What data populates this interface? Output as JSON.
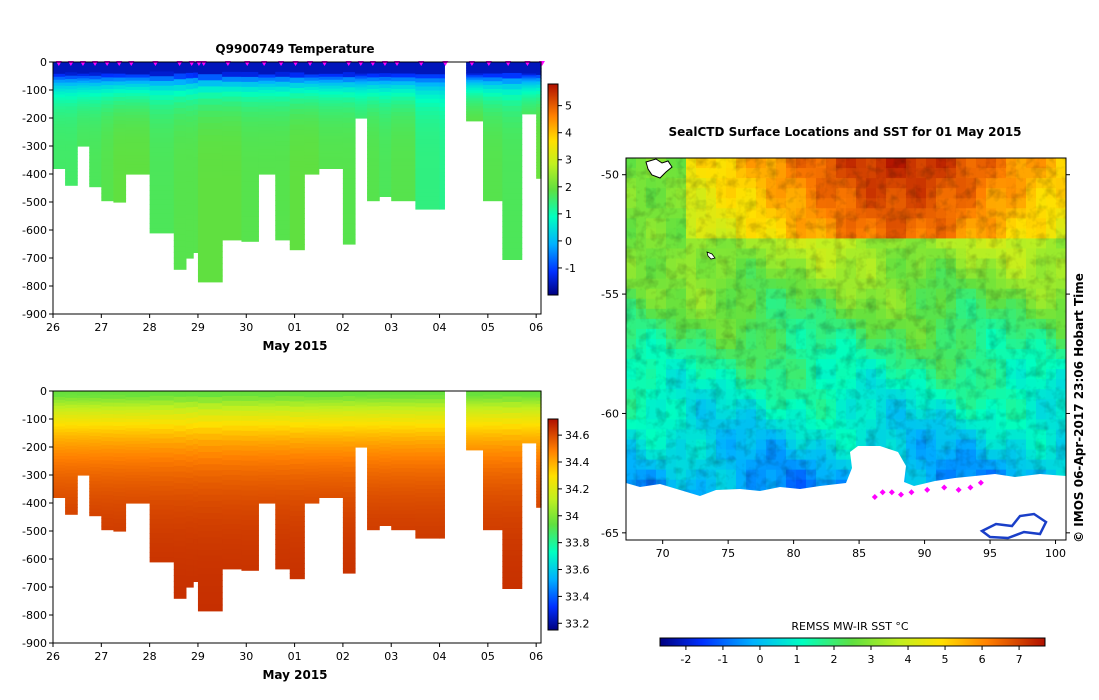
{
  "chart_data": [
    {
      "type": "heatmap",
      "title": "Q9900749  Temperature",
      "variable": "temperature",
      "xlabel": "May 2015",
      "x_ticks": [
        "26",
        "27",
        "28",
        "29",
        "30",
        "01",
        "02",
        "03",
        "04",
        "05",
        "06"
      ],
      "x_range_days": [
        0,
        10.1
      ],
      "y_ticks": [
        "0",
        "-100",
        "-200",
        "-300",
        "-400",
        "-500",
        "-600",
        "-700",
        "-800",
        "-900"
      ],
      "ylim": [
        -900,
        0
      ],
      "colorbar": {
        "range": [
          -2.0,
          5.8
        ],
        "ticks": [
          "-1",
          "0",
          "1",
          "2",
          "3",
          "4",
          "5"
        ],
        "tick_values": [
          -1,
          0,
          1,
          2,
          3,
          4,
          5
        ]
      },
      "surface_value": -1.6,
      "profiles_day": [
        0.0,
        0.25,
        0.5,
        0.75,
        1.0,
        1.25,
        1.5,
        2.0,
        2.5,
        2.75,
        2.9,
        3.0,
        3.5,
        3.9,
        4.25,
        4.6,
        4.9,
        5.2,
        5.5,
        6.0,
        6.25,
        6.5,
        6.75,
        7.0,
        7.5,
        8.0,
        8.55,
        8.9,
        9.3,
        9.7,
        10.0
      ],
      "profiles_max_depth_m": [
        380,
        440,
        300,
        445,
        495,
        500,
        400,
        610,
        740,
        700,
        680,
        785,
        635,
        640,
        400,
        635,
        670,
        400,
        380,
        650,
        200,
        495,
        480,
        495,
        525,
        525,
        210,
        495,
        705,
        185,
        415
      ],
      "profiles_deep_value": [
        1.6,
        1.6,
        1.7,
        1.7,
        1.8,
        1.9,
        1.9,
        1.7,
        1.8,
        1.8,
        1.8,
        1.9,
        1.9,
        1.8,
        1.8,
        1.8,
        1.9,
        1.9,
        1.8,
        1.8,
        1.7,
        1.8,
        1.7,
        1.8,
        1.4,
        1.3,
        2.0,
        1.8,
        1.7,
        1.9,
        2.0
      ],
      "gap_days": [
        8.1,
        8.55
      ]
    },
    {
      "type": "heatmap",
      "title": "",
      "variable": "salinity",
      "xlabel": "May 2015",
      "x_ticks": [
        "26",
        "27",
        "28",
        "29",
        "30",
        "01",
        "02",
        "03",
        "04",
        "05",
        "06"
      ],
      "x_range_days": [
        0,
        10.1
      ],
      "y_ticks": [
        "0",
        "-100",
        "-200",
        "-300",
        "-400",
        "-500",
        "-600",
        "-700",
        "-800",
        "-900"
      ],
      "ylim": [
        -900,
        0
      ],
      "colorbar": {
        "range": [
          33.15,
          34.72
        ],
        "ticks": [
          "33.2",
          "33.4",
          "33.6",
          "33.8",
          "34",
          "34.2",
          "34.4",
          "34.6"
        ],
        "tick_values": [
          33.2,
          33.4,
          33.6,
          33.8,
          34.0,
          34.2,
          34.4,
          34.6
        ]
      },
      "surface_value": 33.95,
      "deep_value": 34.66
    },
    {
      "type": "heatmap",
      "title": "SealCTD Surface Locations and SST for 01 May 2015",
      "xlabel": "",
      "ylabel": "",
      "x_ticks": [
        "70",
        "75",
        "80",
        "85",
        "90",
        "95",
        "100"
      ],
      "x_values": [
        70,
        75,
        80,
        85,
        90,
        95,
        100
      ],
      "xlim": [
        67.2,
        100.8
      ],
      "y_ticks": [
        "-50",
        "-55",
        "-60",
        "-65"
      ],
      "y_values": [
        -50,
        -55,
        -60,
        -65
      ],
      "ylim": [
        -65.3,
        -49.3
      ],
      "colorbar": {
        "label": "REMSS MW-IR SST °C",
        "range": [
          -2.7,
          7.7
        ],
        "ticks": [
          "-2",
          "-1",
          "0",
          "1",
          "2",
          "3",
          "4",
          "5",
          "6",
          "7"
        ],
        "tick_values": [
          -2,
          -1,
          0,
          1,
          2,
          3,
          4,
          5,
          6,
          7
        ]
      },
      "sst_north_c": 6.5,
      "sst_south_c": -1.0,
      "ice_edge_lat": -62.8,
      "seal_track_points": [
        [
          86.2,
          -63.5
        ],
        [
          86.8,
          -63.3
        ],
        [
          87.5,
          -63.3
        ],
        [
          88.2,
          -63.4
        ],
        [
          89.0,
          -63.3
        ],
        [
          90.2,
          -63.2
        ],
        [
          91.5,
          -63.1
        ],
        [
          92.6,
          -63.2
        ],
        [
          93.5,
          -63.1
        ],
        [
          94.3,
          -62.9
        ]
      ]
    }
  ],
  "credit": "© IMOS 06-Apr-2017 23:06 Hobart Time",
  "colors": {
    "marker": "#ff00ff",
    "land_white": "#ffffff",
    "coast_blue": "#1a3fc8"
  }
}
